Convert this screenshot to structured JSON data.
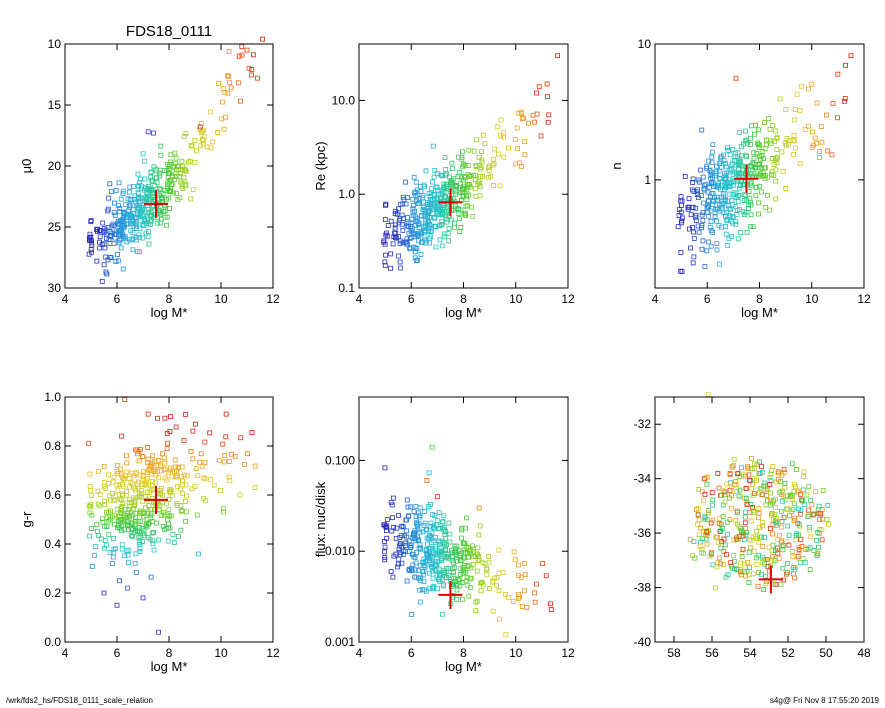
{
  "title": "FDS18_0111",
  "footer": {
    "path": "/wrk/fds2_hs/FDS18_0111_scale_relation",
    "stamp": "s4g@  Fri Nov  8 17:55:20 2019"
  },
  "colors": {
    "marker": "#dd0000",
    "frame": "#000000"
  },
  "chart_data": [
    {
      "id": "mu0",
      "type": "scatter",
      "title": "FDS18_0111",
      "xlabel": "log M*",
      "ylabel": "μ0",
      "xlim": [
        4,
        12
      ],
      "ylim": [
        30,
        10
      ],
      "xticks": [
        "4",
        "6",
        "8",
        "10",
        "12"
      ],
      "yticks": [
        "10",
        "15",
        "20",
        "25",
        "30"
      ],
      "trend": {
        "x": [
          5.0,
          6.0,
          7.0,
          8.0,
          9.0,
          10.0,
          11.5
        ],
        "y": [
          26.0,
          24.8,
          23.5,
          21.5,
          19.0,
          15.5,
          11.5
        ]
      },
      "scatter_y": 1.3,
      "extra_points": [
        {
          "x": 11.6,
          "y": 9.6,
          "c": "#dd2200"
        },
        {
          "x": 10.8,
          "y": 10.2,
          "c": "#ee2200"
        },
        {
          "x": 11.0,
          "y": 10.5,
          "c": "#ee4400"
        },
        {
          "x": 10.7,
          "y": 11.0,
          "c": "#ee3300"
        },
        {
          "x": 11.4,
          "y": 12.8,
          "c": "#ee3300"
        },
        {
          "x": 7.2,
          "y": 17.2,
          "c": "#3333cc"
        },
        {
          "x": 7.4,
          "y": 17.3,
          "c": "#3333cc"
        },
        {
          "x": 9.2,
          "y": 16.8,
          "c": "#dd2200"
        }
      ],
      "marker": {
        "x": 7.5,
        "y": 23.1
      }
    },
    {
      "id": "re",
      "type": "scatter",
      "xlabel": "log M*",
      "ylabel": "Re (kpc)",
      "xlim": [
        4,
        12
      ],
      "ylim": [
        0.1,
        40
      ],
      "ylog": true,
      "xticks": [
        "4",
        "6",
        "8",
        "10",
        "12"
      ],
      "yticks": [
        "0.1",
        "1.0",
        "10.0"
      ],
      "trend": {
        "x": [
          5.0,
          6.0,
          7.0,
          8.0,
          9.0,
          10.0,
          11.5
        ],
        "y": [
          0.35,
          0.45,
          0.7,
          1.1,
          2.0,
          3.5,
          8.0
        ]
      },
      "scatter_y": 0.4,
      "extra_points": [
        {
          "x": 11.6,
          "y": 30,
          "c": "#dd2200"
        },
        {
          "x": 10.9,
          "y": 14,
          "c": "#ee3300"
        },
        {
          "x": 11.2,
          "y": 15,
          "c": "#ee3300"
        },
        {
          "x": 10.8,
          "y": 12,
          "c": "#dd2200"
        }
      ],
      "marker": {
        "x": 7.5,
        "y": 0.82
      }
    },
    {
      "id": "n",
      "type": "scatter",
      "xlabel": "log M*",
      "ylabel": "n",
      "xlim": [
        4,
        12
      ],
      "ylim": [
        0.16,
        10
      ],
      "ylog": true,
      "xticks": [
        "4",
        "6",
        "8",
        "10",
        "12"
      ],
      "yticks": [
        "1",
        "10"
      ],
      "trend": {
        "x": [
          5.0,
          6.0,
          7.0,
          8.0,
          9.0,
          10.0,
          11.5
        ],
        "y": [
          0.5,
          0.7,
          0.9,
          1.2,
          1.6,
          2.5,
          5.0
        ]
      },
      "scatter_y": 0.35,
      "extra_points": [
        {
          "x": 7.1,
          "y": 5.6,
          "c": "#ee3300"
        },
        {
          "x": 11.5,
          "y": 8.2,
          "c": "#dd2200"
        },
        {
          "x": 11.0,
          "y": 6.0,
          "c": "#ee3300"
        }
      ],
      "marker": {
        "x": 7.5,
        "y": 1.02
      }
    },
    {
      "id": "gr",
      "type": "scatter",
      "xlabel": "log M*",
      "ylabel": "g-r",
      "xlim": [
        4,
        12
      ],
      "ylim": [
        0.0,
        1.0
      ],
      "xticks": [
        "4",
        "6",
        "8",
        "10",
        "12"
      ],
      "yticks": [
        "0.0",
        "0.2",
        "0.4",
        "0.6",
        "0.8",
        "1.0"
      ],
      "trend": {
        "x": [
          5.0,
          6.0,
          7.0,
          8.0,
          9.0,
          10.0,
          11.5
        ],
        "y": [
          0.55,
          0.55,
          0.57,
          0.62,
          0.67,
          0.72,
          0.8
        ]
      },
      "scatter_y": 0.12,
      "color_by_y": [
        0.2,
        0.85
      ],
      "extra_points": [
        {
          "x": 6.3,
          "y": 0.99,
          "c": "#ee3300"
        },
        {
          "x": 7.2,
          "y": 0.93,
          "c": "#ee3300"
        },
        {
          "x": 7.6,
          "y": 0.04,
          "c": "#3333cc"
        },
        {
          "x": 6.1,
          "y": 0.25,
          "c": "#3355dd"
        },
        {
          "x": 6.4,
          "y": 0.22,
          "c": "#3355dd"
        },
        {
          "x": 6.0,
          "y": 0.15,
          "c": "#3333cc"
        },
        {
          "x": 5.5,
          "y": 0.2,
          "c": "#3333cc"
        },
        {
          "x": 7.0,
          "y": 0.18,
          "c": "#3333cc"
        }
      ],
      "marker": {
        "x": 7.5,
        "y": 0.58
      }
    },
    {
      "id": "flux",
      "type": "scatter",
      "xlabel": "log M*",
      "ylabel": "flux: nuc/disk",
      "xlim": [
        4,
        12
      ],
      "ylim": [
        0.001,
        0.5
      ],
      "ylog": true,
      "xticks": [
        "4",
        "6",
        "8",
        "10",
        "12"
      ],
      "yticks": [
        "0.001",
        "0.010",
        "0.100"
      ],
      "trend": {
        "x": [
          5.0,
          6.0,
          7.0,
          8.0,
          9.0,
          10.0,
          11.5
        ],
        "y": [
          0.015,
          0.012,
          0.009,
          0.007,
          0.005,
          0.004,
          0.003
        ]
      },
      "scatter_y": 0.45,
      "extra_points": [
        {
          "x": 6.8,
          "y": 0.14,
          "c": "#44cc44"
        },
        {
          "x": 7.0,
          "y": 0.04,
          "c": "#ee3300"
        },
        {
          "x": 6.6,
          "y": 0.06,
          "c": "#ee6600"
        },
        {
          "x": 8.6,
          "y": 0.03,
          "c": "#ee8800"
        }
      ],
      "marker": {
        "x": 7.5,
        "y": 0.0033
      }
    },
    {
      "id": "pos",
      "type": "scatter",
      "xlabel": "",
      "ylabel": "",
      "xlim": [
        59,
        48
      ],
      "ylim": [
        -40,
        -31
      ],
      "xticks": [
        "58",
        "56",
        "54",
        "52",
        "50",
        "48"
      ],
      "yticks": [
        "-32",
        "-34",
        "-36",
        "-38",
        "-40"
      ],
      "cloud": {
        "cx": 53.6,
        "cy": -35.6,
        "rx": 3.6,
        "ry": 2.3
      },
      "extra_points": [
        {
          "x": 56.2,
          "y": -30.9,
          "c": "#ddcc33"
        }
      ],
      "marker": {
        "x": 52.9,
        "y": -37.7
      }
    }
  ]
}
